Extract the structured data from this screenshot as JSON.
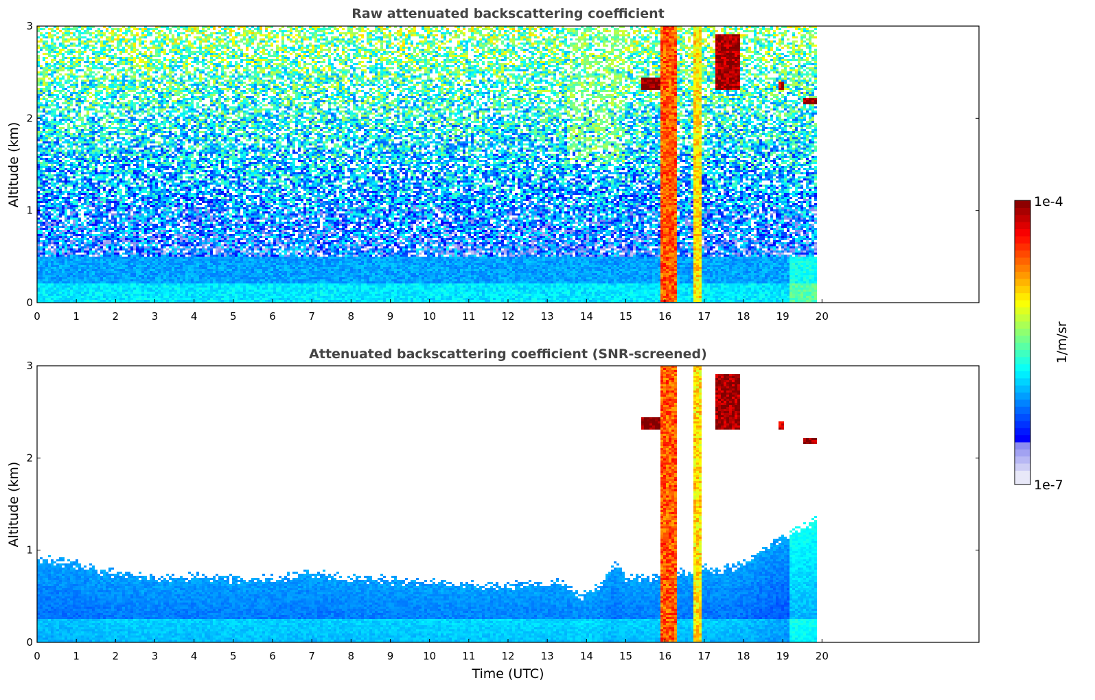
{
  "chart_data": [
    {
      "type": "heatmap",
      "title": "Raw attenuated backscattering coefficient",
      "xlabel": "",
      "ylabel": "Altitude (km)",
      "xlim": [
        0,
        24
      ],
      "ylim": [
        0,
        3
      ],
      "x_ticks": [
        0,
        1,
        2,
        3,
        4,
        5,
        6,
        7,
        8,
        9,
        10,
        11,
        12,
        13,
        14,
        15,
        16,
        17,
        18,
        19,
        20
      ],
      "y_ticks": [
        0,
        1,
        2,
        3
      ],
      "data_extent_hours": [
        0,
        19.9
      ],
      "features": [
        {
          "kind": "boundary_layer",
          "time": [
            0,
            19.9
          ],
          "top_km": 0.5,
          "log10_value": -6.2
        },
        {
          "kind": "aerosol_layer",
          "time": [
            13.5,
            15.0
          ],
          "altitude_km": [
            1.5,
            3.0
          ],
          "log10_value": -5.4
        },
        {
          "kind": "thick_cloud_column",
          "time": [
            15.85,
            16.3
          ],
          "altitude_km": [
            0.0,
            3.0
          ],
          "log10_value": -4.6
        },
        {
          "kind": "cloud_column",
          "time": [
            16.72,
            16.9
          ],
          "altitude_km": [
            0.0,
            3.0
          ],
          "log10_value": -5.0
        },
        {
          "kind": "cloud_layer",
          "time": [
            15.4,
            15.85
          ],
          "altitude_km": [
            2.3,
            2.45
          ],
          "log10_value": -4.0
        },
        {
          "kind": "cloud_patch",
          "time": [
            17.3,
            17.9
          ],
          "altitude_km": [
            2.3,
            2.9
          ],
          "log10_value": -4.1
        },
        {
          "kind": "cloud_patch",
          "time": [
            18.9,
            19.05
          ],
          "altitude_km": [
            2.3,
            2.4
          ],
          "log10_value": -4.2
        },
        {
          "kind": "cloud_patch",
          "time": [
            19.55,
            19.85
          ],
          "altitude_km": [
            2.15,
            2.22
          ],
          "log10_value": -4.1
        }
      ]
    },
    {
      "type": "heatmap",
      "title": "Attenuated backscattering coefficient (SNR-screened)",
      "xlabel": "Time (UTC)",
      "ylabel": "Altitude (km)",
      "xlim": [
        0,
        24
      ],
      "ylim": [
        0,
        3
      ],
      "x_ticks": [
        0,
        1,
        2,
        3,
        4,
        5,
        6,
        7,
        8,
        9,
        10,
        11,
        12,
        13,
        14,
        15,
        16,
        17,
        18,
        19,
        20
      ],
      "y_ticks": [
        0,
        1,
        2,
        3
      ],
      "data_extent_hours": [
        0,
        19.9
      ],
      "screened_top_km": [
        [
          0,
          0.9
        ],
        [
          1,
          0.85
        ],
        [
          2,
          0.75
        ],
        [
          3,
          0.7
        ],
        [
          4,
          0.72
        ],
        [
          5,
          0.7
        ],
        [
          6,
          0.7
        ],
        [
          7,
          0.75
        ],
        [
          8,
          0.7
        ],
        [
          9,
          0.68
        ],
        [
          10,
          0.65
        ],
        [
          11,
          0.62
        ],
        [
          12,
          0.62
        ],
        [
          13,
          0.65
        ],
        [
          13.5,
          0.65
        ],
        [
          13.9,
          0.5
        ],
        [
          14.3,
          0.6
        ],
        [
          14.7,
          0.85
        ],
        [
          15.0,
          0.7
        ],
        [
          15.5,
          0.7
        ],
        [
          16.5,
          0.75
        ],
        [
          17.0,
          0.8
        ],
        [
          17.5,
          0.8
        ],
        [
          18.0,
          0.85
        ],
        [
          18.5,
          1.0
        ],
        [
          19.0,
          1.15
        ],
        [
          19.5,
          1.25
        ],
        [
          19.9,
          1.35
        ]
      ]
    }
  ],
  "colorbar": {
    "label": "1/m/sr",
    "min_label": "1e-7",
    "max_label": "1e-4",
    "min_log10": -7,
    "max_log10": -4,
    "colormap": "jet"
  }
}
